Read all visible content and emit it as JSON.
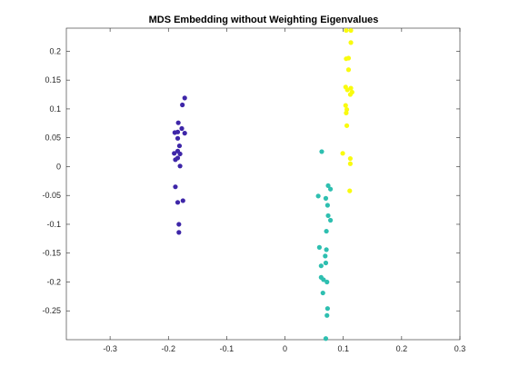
{
  "chart_data": {
    "type": "scatter",
    "title": "MDS Embedding without Weighting Eigenvalues",
    "xlabel": "",
    "ylabel": "",
    "xlim": [
      -0.375,
      0.3
    ],
    "ylim": [
      -0.3,
      0.24
    ],
    "xticks": [
      "-0.3",
      "-0.2",
      "-0.1",
      "0",
      "0.1",
      "0.2",
      "0.3"
    ],
    "xtick_values": [
      -0.3,
      -0.2,
      -0.1,
      0,
      0.1,
      0.2,
      0.3
    ],
    "yticks": [
      "0.2",
      "0.15",
      "0.1",
      "0.05",
      "0",
      "-0.05",
      "-0.1",
      "-0.15",
      "-0.2",
      "-0.25"
    ],
    "ytick_values": [
      0.2,
      0.15,
      0.1,
      0.05,
      0,
      -0.05,
      -0.1,
      -0.15,
      -0.2,
      -0.25
    ],
    "grid": false,
    "box": true,
    "series": [
      {
        "color": "#3e26a8",
        "points": [
          [
            -0.172,
            0.119
          ],
          [
            -0.176,
            0.107
          ],
          [
            -0.183,
            0.076
          ],
          [
            -0.177,
            0.066
          ],
          [
            -0.172,
            0.058
          ],
          [
            -0.184,
            0.06
          ],
          [
            -0.189,
            0.059
          ],
          [
            -0.184,
            0.049
          ],
          [
            -0.181,
            0.036
          ],
          [
            -0.184,
            0.027
          ],
          [
            -0.19,
            0.023
          ],
          [
            -0.18,
            0.022
          ],
          [
            -0.188,
            0.012
          ],
          [
            -0.184,
            0.015
          ],
          [
            -0.18,
            0.001
          ],
          [
            -0.188,
            -0.035
          ],
          [
            -0.175,
            -0.059
          ],
          [
            -0.184,
            -0.062
          ],
          [
            -0.182,
            -0.1
          ],
          [
            -0.182,
            -0.114
          ]
        ]
      },
      {
        "color": "#2ebfb0",
        "points": [
          [
            0.063,
            0.026
          ],
          [
            0.074,
            -0.033
          ],
          [
            0.078,
            -0.039
          ],
          [
            0.057,
            -0.051
          ],
          [
            0.07,
            -0.055
          ],
          [
            0.073,
            -0.067
          ],
          [
            0.074,
            -0.085
          ],
          [
            0.078,
            -0.093
          ],
          [
            0.071,
            -0.112
          ],
          [
            0.059,
            -0.14
          ],
          [
            0.071,
            -0.144
          ],
          [
            0.069,
            -0.155
          ],
          [
            0.07,
            -0.167
          ],
          [
            0.062,
            -0.172
          ],
          [
            0.062,
            -0.192
          ],
          [
            0.066,
            -0.196
          ],
          [
            0.072,
            -0.2
          ],
          [
            0.065,
            -0.219
          ],
          [
            0.073,
            -0.246
          ],
          [
            0.072,
            -0.258
          ],
          [
            0.07,
            -0.298
          ]
        ]
      },
      {
        "color": "#f9fb0e",
        "points": [
          [
            0.105,
            0.236
          ],
          [
            0.113,
            0.236
          ],
          [
            0.113,
            0.215
          ],
          [
            0.109,
            0.188
          ],
          [
            0.105,
            0.187
          ],
          [
            0.109,
            0.168
          ],
          [
            0.104,
            0.138
          ],
          [
            0.113,
            0.136
          ],
          [
            0.107,
            0.133
          ],
          [
            0.115,
            0.129
          ],
          [
            0.112,
            0.125
          ],
          [
            0.104,
            0.106
          ],
          [
            0.106,
            0.099
          ],
          [
            0.105,
            0.093
          ],
          [
            0.106,
            0.071
          ],
          [
            0.099,
            0.023
          ],
          [
            0.112,
            0.014
          ],
          [
            0.112,
            0.005
          ],
          [
            0.111,
            -0.042
          ]
        ]
      }
    ]
  }
}
